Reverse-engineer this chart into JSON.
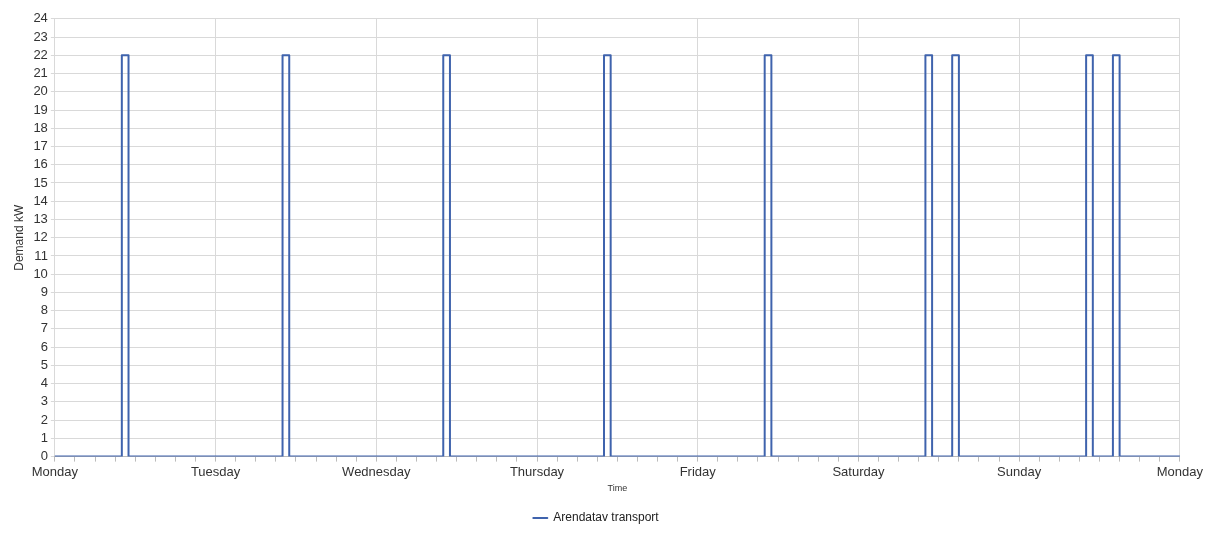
{
  "chart_data": {
    "type": "step",
    "xlabel": "Time",
    "ylabel": "Demand kW",
    "categories": [
      "Monday",
      null,
      null,
      null,
      null,
      null,
      null,
      null,
      null,
      null,
      null,
      null,
      null,
      null,
      null,
      null,
      null,
      null,
      null,
      null,
      null,
      null,
      null,
      null,
      "Tuesday",
      null,
      null,
      null,
      null,
      null,
      null,
      null,
      null,
      null,
      null,
      null,
      null,
      null,
      null,
      null,
      null,
      null,
      null,
      null,
      null,
      null,
      null,
      null,
      "Wednesday",
      null,
      null,
      null,
      null,
      null,
      null,
      null,
      null,
      null,
      null,
      null,
      null,
      null,
      null,
      null,
      null,
      null,
      null,
      null,
      null,
      null,
      null,
      null,
      "Thursday",
      null,
      null,
      null,
      null,
      null,
      null,
      null,
      null,
      null,
      null,
      null,
      null,
      null,
      null,
      null,
      null,
      null,
      null,
      null,
      null,
      null,
      null,
      null,
      "Friday",
      null,
      null,
      null,
      null,
      null,
      null,
      null,
      null,
      null,
      null,
      null,
      null,
      null,
      null,
      null,
      null,
      null,
      null,
      null,
      null,
      null,
      null,
      null,
      "Saturday",
      null,
      null,
      null,
      null,
      null,
      null,
      null,
      null,
      null,
      null,
      null,
      null,
      null,
      null,
      null,
      null,
      null,
      null,
      null,
      null,
      null,
      null,
      null,
      "Sunday",
      null,
      null,
      null,
      null,
      null,
      null,
      null,
      null,
      null,
      null,
      null,
      null,
      null,
      null,
      null,
      null,
      null,
      null,
      null,
      null,
      null,
      null,
      null,
      "Monday"
    ],
    "series": [
      {
        "name": "Arendatav transport",
        "color": "#3f63ad",
        "values": [
          0,
          0,
          0,
          0,
          0,
          0,
          0,
          0,
          0,
          0,
          22,
          0,
          0,
          0,
          0,
          0,
          0,
          0,
          0,
          0,
          0,
          0,
          0,
          0,
          0,
          0,
          0,
          0,
          0,
          0,
          0,
          0,
          0,
          0,
          22,
          0,
          0,
          0,
          0,
          0,
          0,
          0,
          0,
          0,
          0,
          0,
          0,
          0,
          0,
          0,
          0,
          0,
          0,
          0,
          0,
          0,
          0,
          0,
          22,
          0,
          0,
          0,
          0,
          0,
          0,
          0,
          0,
          0,
          0,
          0,
          0,
          0,
          0,
          0,
          0,
          0,
          0,
          0,
          0,
          0,
          0,
          0,
          22,
          0,
          0,
          0,
          0,
          0,
          0,
          0,
          0,
          0,
          0,
          0,
          0,
          0,
          0,
          0,
          0,
          0,
          0,
          0,
          0,
          0,
          0,
          0,
          22,
          0,
          0,
          0,
          0,
          0,
          0,
          0,
          0,
          0,
          0,
          0,
          0,
          0,
          0,
          0,
          0,
          0,
          0,
          0,
          0,
          0,
          0,
          0,
          22,
          0,
          0,
          0,
          22,
          0,
          0,
          0,
          0,
          0,
          0,
          0,
          0,
          0,
          0,
          0,
          0,
          0,
          0,
          0,
          0,
          0,
          0,
          0,
          22,
          0,
          0,
          0,
          22,
          0,
          0,
          0,
          0,
          0,
          0,
          0,
          0,
          0,
          0
        ]
      }
    ],
    "ylim": [
      0,
      24
    ],
    "yticks": [
      0,
      1,
      2,
      3,
      4,
      5,
      6,
      7,
      8,
      9,
      10,
      11,
      12,
      13,
      14,
      15,
      16,
      17,
      18,
      19,
      20,
      21,
      22,
      23,
      24
    ],
    "grid": true,
    "legend": "bottom",
    "marker": "none",
    "line_style": "solid"
  }
}
